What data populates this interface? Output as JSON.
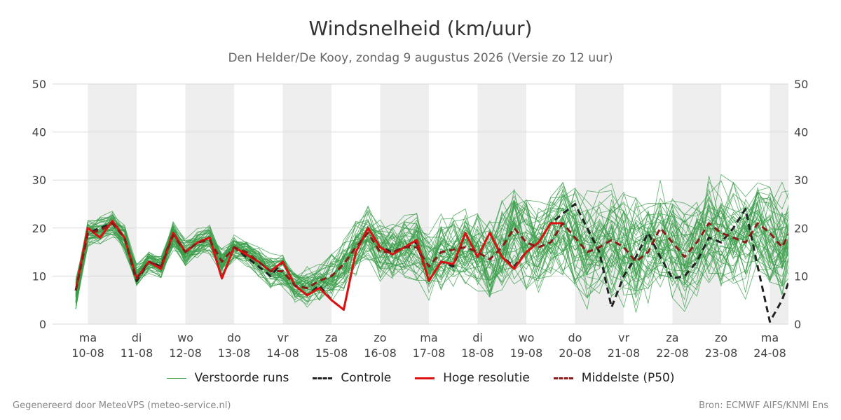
{
  "title": "Windsnelheid (km/uur)",
  "subtitle": "Den Helder/De Kooy, zondag  9 augustus 2026 (Versie zo 12 uur)",
  "footer": {
    "left": "Gegenereerd door MeteoVPS (meteo-service.nl)",
    "right": "Bron: ECMWF AIFS/KNMI Ens"
  },
  "legend": [
    {
      "label": "Verstoorde runs",
      "color": "#3a9d4a",
      "style": "thin-solid"
    },
    {
      "label": "Controle",
      "color": "#222222",
      "style": "dashed"
    },
    {
      "label": "Hoge resolutie",
      "color": "#dd1111",
      "style": "solid"
    },
    {
      "label": "Middelste (P50)",
      "color": "#8b1a1a",
      "style": "dashed"
    }
  ],
  "chart_data": {
    "type": "line",
    "title": "Windsnelheid (km/uur)",
    "ylim": [
      0,
      50
    ],
    "xlim": [
      -0.25,
      14.5
    ],
    "y_ticks": [
      0,
      10,
      20,
      30,
      40,
      50
    ],
    "y_ticks_right": [
      0,
      10,
      20,
      30,
      40,
      50
    ],
    "grid": true,
    "legend_position": "bottom",
    "x_tick_labels": [
      {
        "day": "ma",
        "date": "10-08"
      },
      {
        "day": "di",
        "date": "11-08"
      },
      {
        "day": "wo",
        "date": "12-08"
      },
      {
        "day": "do",
        "date": "13-08"
      },
      {
        "day": "vr",
        "date": "14-08"
      },
      {
        "day": "za",
        "date": "15-08"
      },
      {
        "day": "zo",
        "date": "16-08"
      },
      {
        "day": "ma",
        "date": "17-08"
      },
      {
        "day": "di",
        "date": "18-08"
      },
      {
        "day": "wo",
        "date": "19-08"
      },
      {
        "day": "do",
        "date": "20-08"
      },
      {
        "day": "vr",
        "date": "21-08"
      },
      {
        "day": "za",
        "date": "22-08"
      },
      {
        "day": "zo",
        "date": "23-08"
      },
      {
        "day": "ma",
        "date": "24-08"
      }
    ],
    "shaded_day_bands": [
      [
        0,
        1
      ],
      [
        2,
        3
      ],
      [
        4,
        5
      ],
      [
        6,
        7
      ],
      [
        8,
        9
      ],
      [
        10,
        11
      ],
      [
        12,
        13
      ],
      [
        14,
        14.5
      ]
    ],
    "series": [
      {
        "name": "Controle",
        "color": "#222222",
        "dash": "dashed",
        "x": [
          -0.25,
          0,
          0.25,
          0.5,
          0.75,
          1,
          1.25,
          1.5,
          1.75,
          2,
          2.25,
          2.5,
          2.75,
          3,
          3.25,
          3.5,
          3.75,
          4,
          4.25,
          4.5,
          4.75,
          5,
          5.25,
          5.5,
          5.75,
          6,
          6.25,
          6.5,
          6.75,
          7,
          7.25,
          7.5,
          7.75,
          8,
          8.25,
          8.5,
          8.75,
          9,
          9.25,
          9.5,
          9.75,
          10,
          10.25,
          10.5,
          10.75,
          11,
          11.25,
          11.5,
          11.75,
          12,
          12.25,
          12.5,
          12.75,
          13,
          13.25,
          13.5,
          13.75,
          14,
          14.25,
          14.5
        ],
        "values": [
          7,
          19,
          20,
          21,
          18,
          9,
          13,
          12,
          19,
          15,
          17,
          18,
          9.5,
          16,
          14,
          12,
          10,
          13,
          8,
          6,
          8,
          5,
          3,
          15,
          20,
          16,
          15,
          16,
          17,
          9,
          13,
          12,
          19,
          14,
          19,
          14,
          12,
          15,
          17,
          21,
          23,
          25,
          20,
          15,
          3.5,
          10,
          14,
          19,
          14,
          9.5,
          10,
          13,
          18,
          17,
          20,
          24,
          12,
          0.5,
          5,
          12
        ]
      },
      {
        "name": "Hoge resolutie",
        "color": "#dd1111",
        "dash": "solid",
        "x": [
          -0.25,
          0,
          0.25,
          0.5,
          0.75,
          1,
          1.25,
          1.5,
          1.75,
          2,
          2.25,
          2.5,
          2.75,
          3,
          3.25,
          3.5,
          3.75,
          4,
          4.25,
          4.5,
          4.75,
          5,
          5.25,
          5.5,
          5.75,
          6,
          6.25,
          6.5,
          6.75,
          7,
          7.25,
          7.5,
          7.75,
          8,
          8.25,
          8.5,
          8.75,
          9,
          9.25,
          9.5,
          9.75
        ],
        "values": [
          7,
          20,
          18,
          21.5,
          18,
          9.5,
          13,
          11.5,
          19,
          15,
          17,
          18,
          9.5,
          16,
          14.5,
          13,
          11,
          13,
          8,
          6,
          7.5,
          5,
          3,
          15,
          20,
          16,
          14.5,
          16,
          17.5,
          9,
          13,
          12.5,
          19,
          14,
          19,
          14,
          11.5,
          15,
          17,
          21,
          21
        ]
      },
      {
        "name": "Middelste (P50)",
        "color": "#8b1a1a",
        "dash": "dashed",
        "x": [
          -0.25,
          0,
          0.25,
          0.5,
          0.75,
          1,
          1.25,
          1.5,
          1.75,
          2,
          2.25,
          2.5,
          2.75,
          3,
          3.25,
          3.5,
          3.75,
          4,
          4.25,
          4.5,
          4.75,
          5,
          5.25,
          5.5,
          5.75,
          6,
          6.25,
          6.5,
          6.75,
          7,
          7.25,
          7.5,
          7.75,
          8,
          8.25,
          8.5,
          8.75,
          9,
          9.25,
          9.5,
          9.75,
          10,
          10.25,
          10.5,
          10.75,
          11,
          11.25,
          11.5,
          11.75,
          12,
          12.25,
          12.5,
          12.75,
          13,
          13.25,
          13.5,
          13.75,
          14,
          14.25,
          14.5
        ],
        "values": [
          7,
          19,
          19.5,
          21,
          18,
          9.5,
          13,
          12,
          18.5,
          15,
          17,
          17.5,
          13,
          16,
          15,
          13,
          11,
          11,
          8,
          7.5,
          9,
          10,
          12.5,
          16,
          19,
          15,
          15,
          16,
          16,
          12,
          15,
          15.5,
          16,
          15,
          13.5,
          16,
          20,
          17,
          16,
          17,
          21,
          18,
          15,
          16,
          17.5,
          16,
          13,
          15,
          20,
          17,
          14,
          17,
          21,
          19,
          18,
          17,
          21,
          19,
          16,
          21
        ]
      }
    ],
    "ensemble": {
      "name": "Verstoorde runs",
      "color": "#3a9d4a",
      "member_count": 50,
      "x_start": -0.25,
      "x_step": 0.25,
      "center": [
        6,
        19,
        19.5,
        21,
        18,
        10,
        13,
        12,
        18.5,
        15,
        17,
        17.5,
        13,
        16,
        15,
        13,
        11,
        11,
        8,
        7.5,
        8.5,
        10,
        12.5,
        16,
        19,
        15,
        15,
        16,
        16,
        12,
        15,
        15.5,
        16,
        15,
        13.5,
        16,
        19,
        17,
        16,
        17,
        20,
        18,
        16,
        16,
        17,
        16,
        14,
        15,
        18,
        17,
        15,
        17,
        20,
        19,
        18,
        17,
        20,
        19,
        17,
        20
      ],
      "spread": [
        3,
        2.5,
        2.5,
        2.5,
        2.5,
        2,
        2,
        2,
        2.5,
        2.5,
        2.5,
        2.5,
        2.5,
        2.5,
        2.5,
        2.5,
        3,
        3,
        3,
        3.5,
        4,
        4.5,
        5,
        5,
        5,
        5.5,
        5.5,
        5.5,
        6,
        6.5,
        7,
        7,
        7.5,
        7.5,
        8,
        8,
        8.5,
        8.5,
        8.5,
        9,
        9.5,
        9.5,
        10,
        10,
        10,
        10,
        10,
        10,
        10,
        10,
        10,
        10,
        10,
        10,
        10,
        10,
        10,
        10,
        10,
        10
      ],
      "y_min": 0.5,
      "y_max": 47.5
    }
  }
}
